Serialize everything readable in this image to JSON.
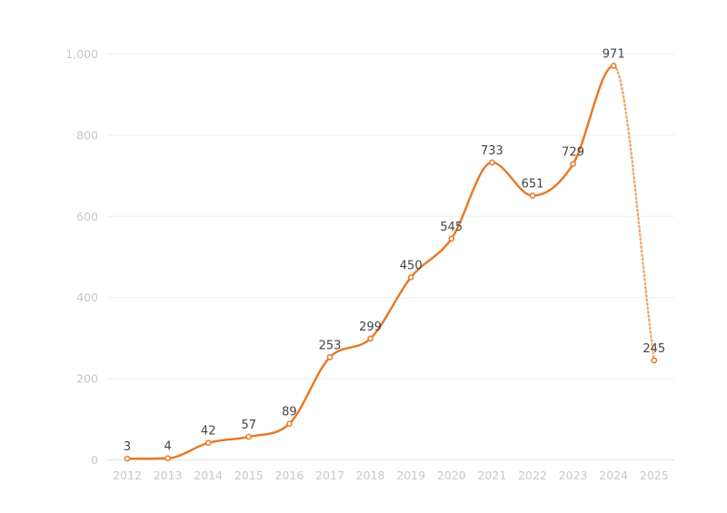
{
  "chart_data": {
    "type": "line",
    "title": "",
    "xlabel": "",
    "ylabel": "",
    "categories": [
      "2012",
      "2013",
      "2014",
      "2015",
      "2016",
      "2017",
      "2018",
      "2019",
      "2020",
      "2021",
      "2022",
      "2023",
      "2024",
      "2025"
    ],
    "series": [
      {
        "values": [
          3,
          4,
          42,
          57,
          89,
          253,
          299,
          450,
          545,
          733,
          651,
          729,
          971,
          245
        ],
        "color": "#e87722",
        "dashed_last_segment": true
      }
    ],
    "data_labels": [
      "3",
      "4",
      "42",
      "57",
      "89",
      "253",
      "299",
      "450",
      "545",
      "733",
      "651",
      "729",
      "971",
      "245"
    ],
    "ylim": [
      0,
      1000
    ],
    "y_ticks": [
      0,
      200,
      400,
      600,
      800,
      1000
    ],
    "y_tick_labels": [
      "0",
      "200",
      "400",
      "600",
      "800",
      "1,000"
    ],
    "grid": true,
    "legend": "none"
  }
}
